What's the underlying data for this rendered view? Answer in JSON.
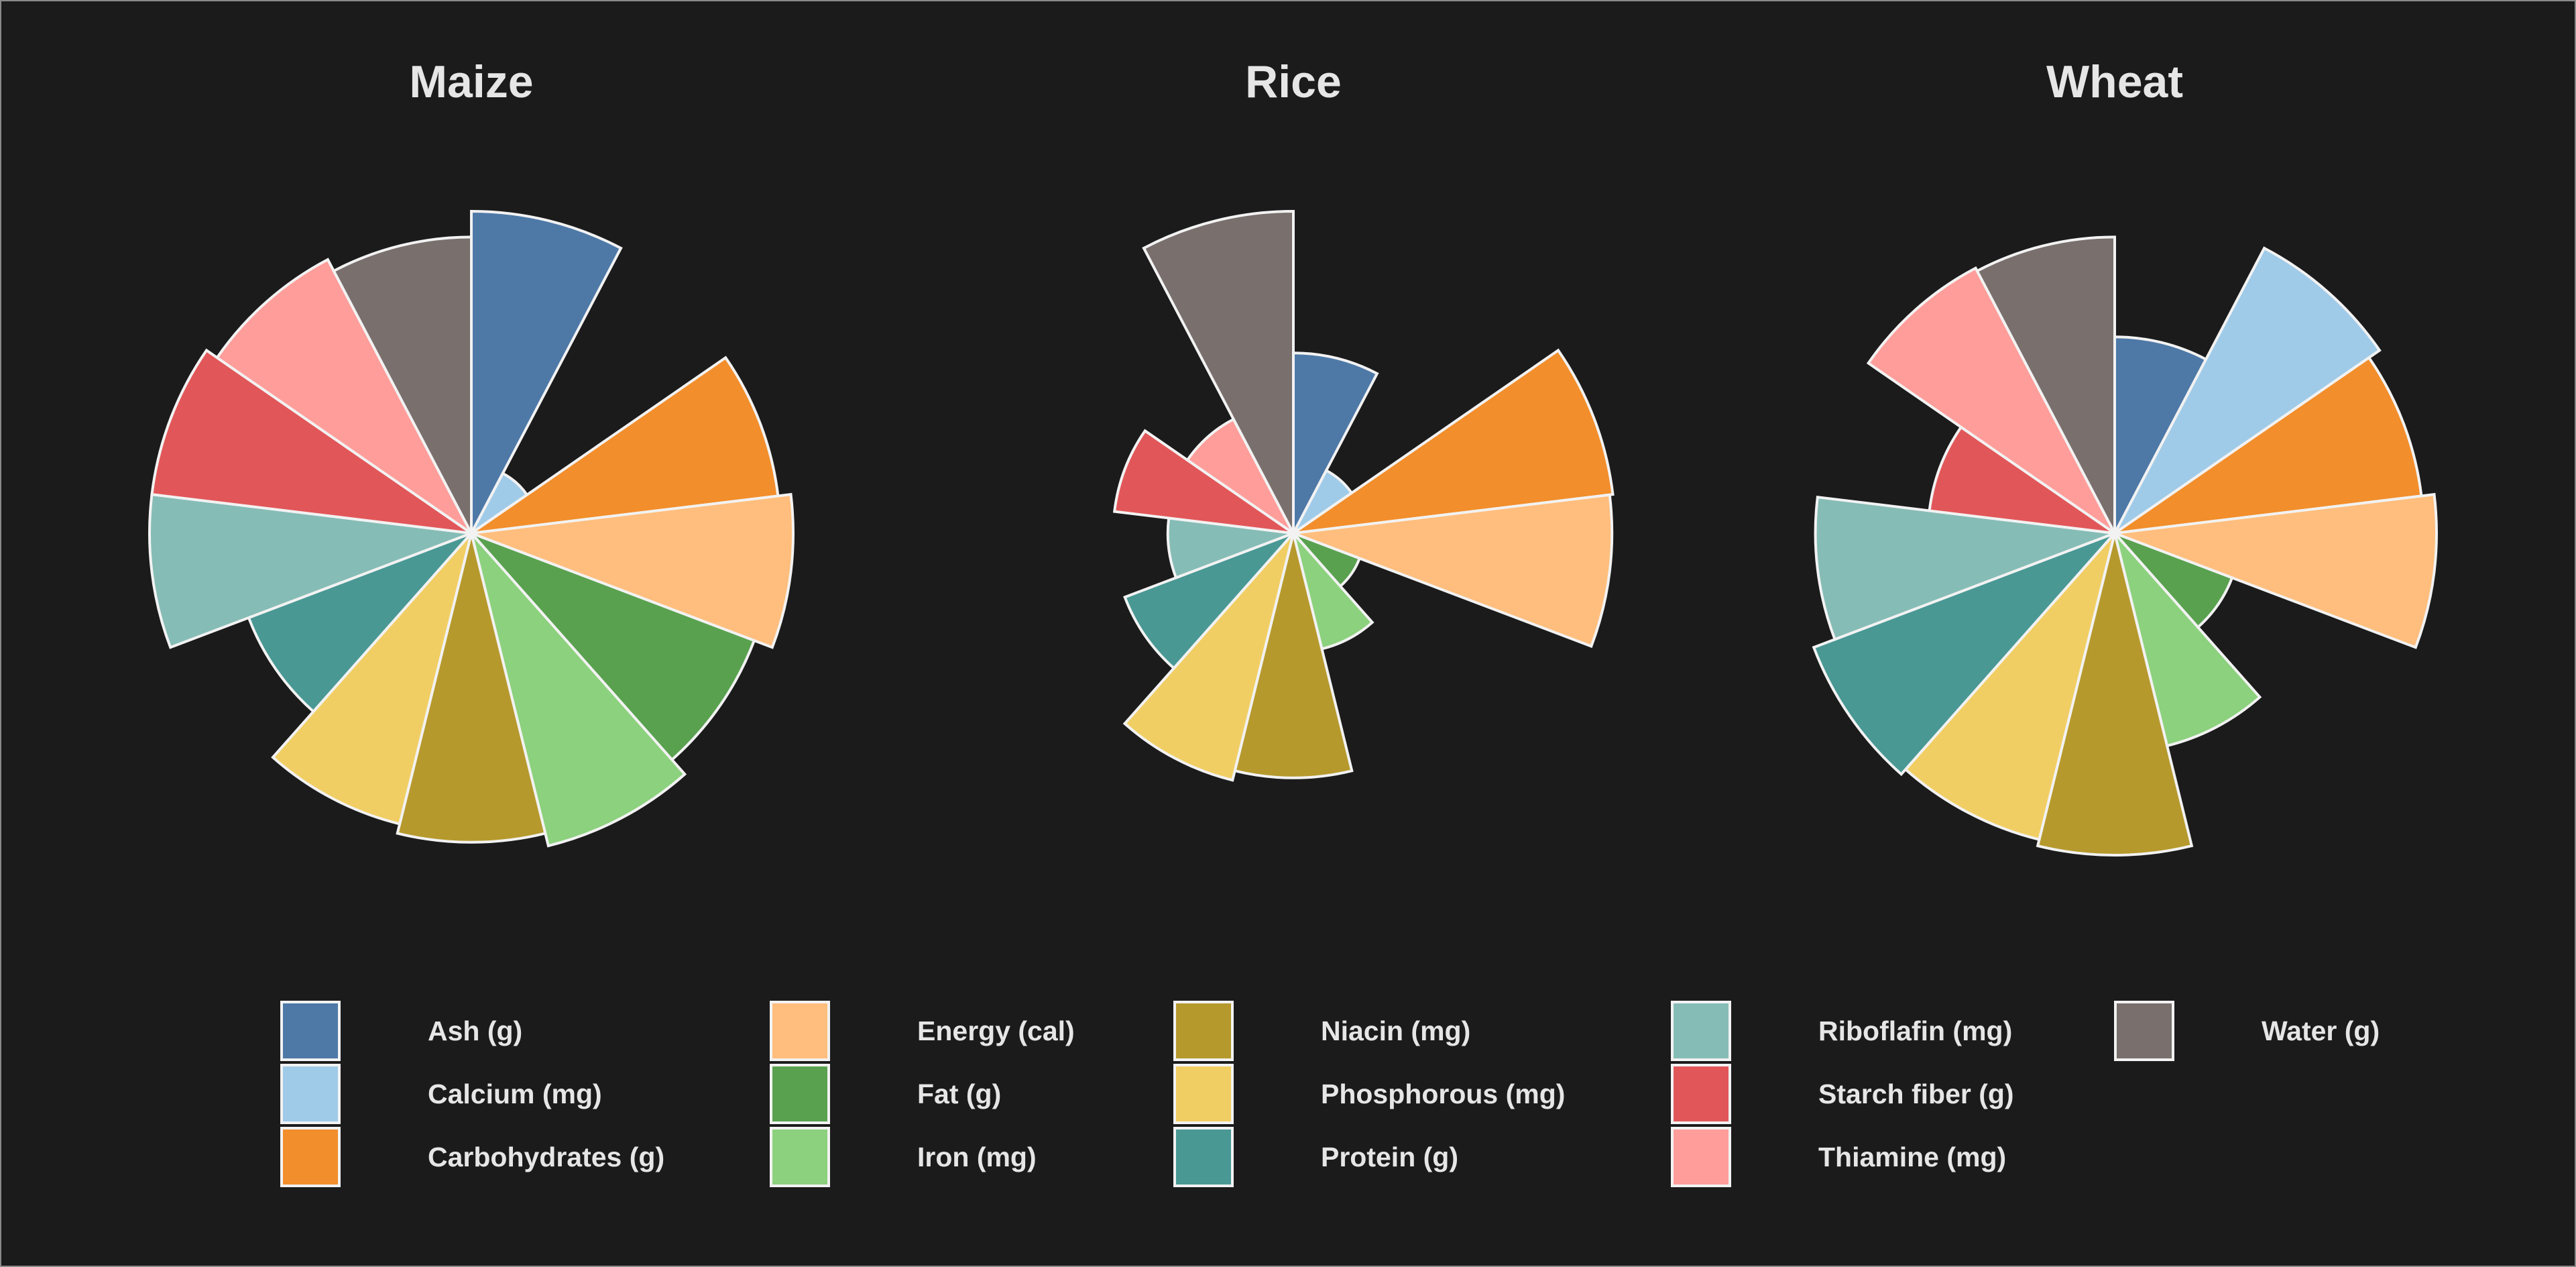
{
  "chart_data": {
    "type": "polar-area",
    "categories": [
      "Ash (g)",
      "Calcium (mg)",
      "Carbohydrates (g)",
      "Energy (cal)",
      "Fat (g)",
      "Iron (mg)",
      "Niacin (mg)",
      "Phosphorous (mg)",
      "Protein (g)",
      "Riboflafin (mg)",
      "Starch fiber (g)",
      "Thiamine (mg)",
      "Water (g)"
    ],
    "colors": [
      "#4e79a7",
      "#a0cbe8",
      "#f28e2b",
      "#ffbe7d",
      "#59a14f",
      "#8cd17d",
      "#b6992d",
      "#f1ce63",
      "#499894",
      "#86bcb6",
      "#e15759",
      "#ff9d9a",
      "#79706e"
    ],
    "value_scale": "relative radius, 0 to 1 (largest of each nutrient across the three grains = 1)",
    "charts": [
      {
        "title": "Maize",
        "values": [
          1.0,
          0.21,
          0.96,
          1.0,
          0.94,
          1.0,
          0.96,
          0.93,
          0.74,
          1.0,
          1.0,
          0.96,
          0.92
        ]
      },
      {
        "title": "Rice",
        "values": [
          0.56,
          0.22,
          1.0,
          0.99,
          0.22,
          0.37,
          0.76,
          0.79,
          0.56,
          0.39,
          0.56,
          0.4,
          1.0
        ]
      },
      {
        "title": "Wheat",
        "values": [
          0.61,
          1.0,
          0.96,
          1.0,
          0.39,
          0.68,
          1.0,
          0.98,
          1.0,
          0.93,
          0.58,
          0.93,
          0.92
        ]
      }
    ],
    "legend": {
      "position": "bottom",
      "columns": [
        [
          "Ash (g)",
          "Calcium (mg)",
          "Carbohydrates (g)"
        ],
        [
          "Energy (cal)",
          "Fat (g)",
          "Iron (mg)"
        ],
        [
          "Niacin (mg)",
          "Phosphorous (mg)",
          "Protein (g)"
        ],
        [
          "Riboflafin (mg)",
          "Starch fiber (g)",
          "Thiamine (mg)"
        ],
        [
          "Water (g)"
        ]
      ]
    }
  }
}
